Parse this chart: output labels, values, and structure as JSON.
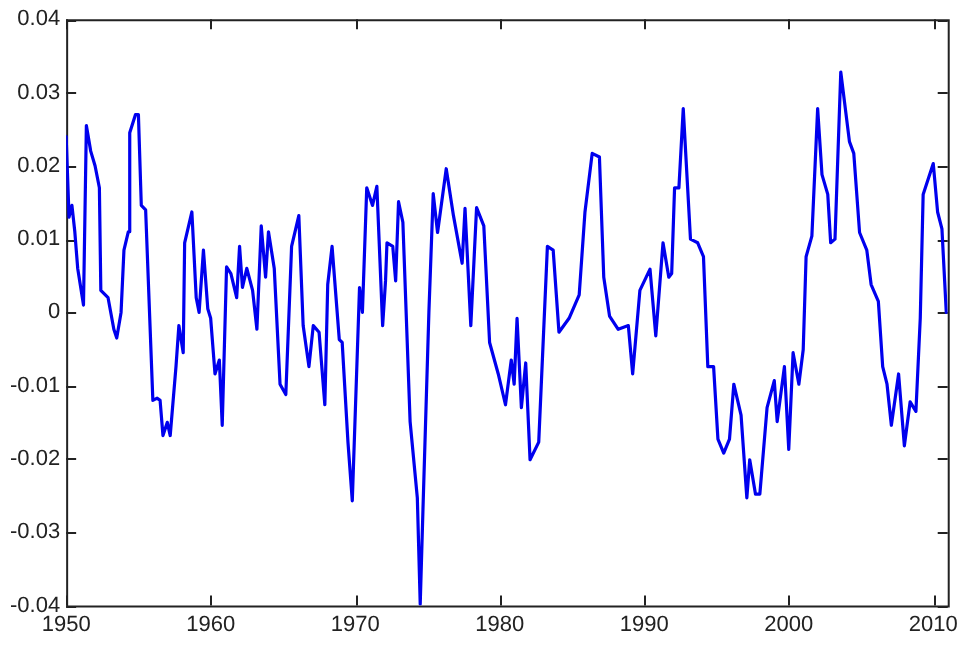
{
  "chart_data": {
    "type": "line",
    "xlim": [
      1950,
      2011
    ],
    "xticks": [
      1950,
      1960,
      1970,
      1980,
      1990,
      2000,
      2010
    ],
    "ylim": [
      -0.04,
      0.04
    ],
    "yticks": [
      -0.04,
      -0.03,
      -0.02,
      -0.01,
      0,
      0.01,
      0.02,
      0.03,
      0.04
    ],
    "grid": false,
    "legend": false,
    "marker": "none",
    "line_style": "solid",
    "series": [
      {
        "color": "#0000ee",
        "x": [
          1950.0,
          1950.2,
          1950.4,
          1950.6,
          1950.8,
          1951.2,
          1951.4,
          1951.7,
          1952.0,
          1952.3,
          1952.4,
          1952.9,
          1953.3,
          1953.5,
          1953.8,
          1954.0,
          1954.3,
          1954.4,
          1954.8,
          1955.0,
          1955.2,
          1955.5,
          1956.0,
          1956.3,
          1956.5,
          1956.7,
          1957.0,
          1957.2,
          1957.6,
          1957.8,
          1958.1,
          1958.2,
          1958.7,
          1959.0,
          1959.2,
          1959.5,
          1959.8,
          1960.0,
          1960.3,
          1960.6,
          1960.8,
          1961.1,
          1961.4,
          1961.8,
          1962.0,
          1962.2,
          1962.5,
          1962.9,
          1963.2,
          1963.5,
          1963.8,
          1964.0,
          1964.4,
          1964.8,
          1965.2,
          1965.6,
          1966.1,
          1966.4,
          1966.8,
          1967.1,
          1967.5,
          1967.9,
          1968.1,
          1968.4,
          1968.9,
          1969.1,
          1969.5,
          1969.8,
          1970.3,
          1970.5,
          1970.8,
          1971.2,
          1971.5,
          1971.9,
          1972.1,
          1972.2,
          1972.6,
          1972.8,
          1973.0,
          1973.3,
          1973.8,
          1974.3,
          1974.5,
          1974.7,
          1975.1,
          1975.4,
          1975.7,
          1976.3,
          1976.8,
          1977.4,
          1977.6,
          1978.0,
          1978.4,
          1978.9,
          1979.3,
          1979.9,
          1980.4,
          1980.8,
          1981.0,
          1981.2,
          1981.5,
          1981.8,
          1982.1,
          1982.7,
          1983.3,
          1983.7,
          1984.1,
          1984.8,
          1985.5,
          1985.9,
          1986.4,
          1986.9,
          1987.2,
          1987.6,
          1988.2,
          1988.9,
          1989.2,
          1989.7,
          1990.4,
          1990.8,
          1991.3,
          1991.7,
          1991.9,
          1992.1,
          1992.4,
          1992.7,
          1993.2,
          1993.7,
          1994.1,
          1994.4,
          1994.8,
          1995.1,
          1995.5,
          1995.9,
          1996.2,
          1996.7,
          1997.1,
          1997.3,
          1997.7,
          1998.0,
          1998.5,
          1999.0,
          1999.2,
          1999.7,
          2000.0,
          2000.3,
          2000.7,
          2001.0,
          2001.2,
          2001.6,
          2002.0,
          2002.3,
          2002.7,
          2002.9,
          2003.2,
          2003.6,
          2004.2,
          2004.5,
          2004.9,
          2005.4,
          2005.7,
          2006.2,
          2006.5,
          2006.8,
          2007.1,
          2007.6,
          2008.0,
          2008.4,
          2008.8,
          2009.1,
          2009.3,
          2010.0,
          2010.3,
          2010.6,
          2010.9
        ],
        "values": [
          0.024,
          0.013,
          0.0146,
          0.011,
          0.006,
          0.001,
          0.0255,
          0.022,
          0.02,
          0.017,
          0.003,
          0.002,
          -0.0023,
          -0.0035,
          0,
          0.0085,
          0.011,
          0.0245,
          0.027,
          0.027,
          0.0146,
          0.014,
          -0.012,
          -0.0117,
          -0.012,
          -0.0168,
          -0.015,
          -0.0168,
          -0.0074,
          -0.0018,
          -0.0055,
          0.0095,
          0.0137,
          0.002,
          0,
          0.0085,
          0.0005,
          -0.0008,
          -0.0084,
          -0.0065,
          -0.0154,
          0.0062,
          0.0053,
          0.002,
          0.009,
          0.0034,
          0.006,
          0.003,
          -0.0023,
          0.0118,
          0.0048,
          0.011,
          0.006,
          -0.0098,
          -0.0112,
          0.009,
          0.0132,
          -0.0018,
          -0.0074,
          -0.0018,
          -0.0027,
          -0.0126,
          0.0038,
          0.009,
          -0.0037,
          -0.0041,
          -0.0177,
          -0.0257,
          0.0034,
          0,
          0.017,
          0.0146,
          0.0172,
          -0.0018,
          0.0043,
          0.0095,
          0.009,
          0.0043,
          0.0151,
          0.0123,
          -0.0149,
          -0.0253,
          -0.0398,
          -0.0262,
          0,
          0.0162,
          0.0109,
          0.0196,
          0.0132,
          0.0067,
          0.0142,
          -0.0018,
          0.0143,
          0.0118,
          -0.0041,
          -0.0084,
          -0.0126,
          -0.0065,
          -0.0098,
          -0.0008,
          -0.013,
          -0.0069,
          -0.0201,
          -0.0177,
          0.009,
          0.0085,
          -0.0027,
          -0.0008,
          0.0024,
          0.0137,
          0.0217,
          0.0212,
          0.0048,
          -0.0005,
          -0.0023,
          -0.0018,
          -0.0084,
          0.003,
          0.0059,
          -0.0032,
          0.0095,
          0.0048,
          0.0053,
          0.017,
          0.017,
          0.0278,
          0.01,
          0.0095,
          0.0076,
          -0.0074,
          -0.0074,
          -0.0173,
          -0.0192,
          -0.0173,
          -0.0098,
          -0.014,
          -0.0253,
          -0.0201,
          -0.0248,
          -0.0248,
          -0.013,
          -0.0093,
          -0.0149,
          -0.0074,
          -0.0187,
          -0.0055,
          -0.0098,
          -0.0051,
          0.0076,
          0.0104,
          0.0278,
          0.0188,
          0.0161,
          0.0095,
          0.01,
          0.0328,
          0.0233,
          0.0217,
          0.0109,
          0.0085,
          0.0038,
          0.0015,
          -0.0074,
          -0.0098,
          -0.0154,
          -0.0084,
          -0.0182,
          -0.0122,
          -0.0135,
          -0.0008,
          0.0161,
          0.0203,
          0.0137,
          0.0114,
          0
        ]
      }
    ]
  }
}
